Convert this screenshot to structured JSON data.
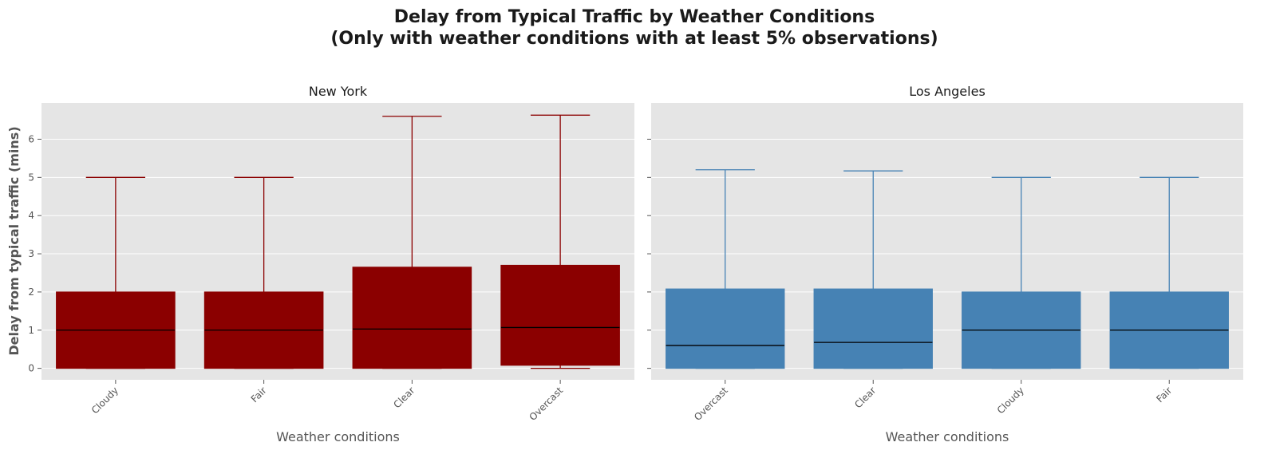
{
  "title_line1": "Delay from Typical Traffic by Weather Conditions",
  "title_line2": "(Only with weather conditions with at least 5% observations)",
  "ylabel": "Delay from typical traffic (mins)",
  "colors": {
    "panel_bg": "#e5e5e5",
    "grid": "#ffffff",
    "median": "#000000"
  },
  "chart_data": [
    {
      "type": "box",
      "title": "New York",
      "xlabel": "Weather conditions",
      "ylabel": "Delay from typical traffic (mins)",
      "color": "#8b0000",
      "ylim": [
        -0.3,
        6.95
      ],
      "yticks": [
        0,
        1,
        2,
        3,
        4,
        5,
        6
      ],
      "categories": [
        "Cloudy",
        "Fair",
        "Clear",
        "Overcast"
      ],
      "boxes": [
        {
          "category": "Cloudy",
          "whisker_low": 0.0,
          "q1": 0.0,
          "median": 1.0,
          "q3": 2.0,
          "whisker_high": 5.0
        },
        {
          "category": "Fair",
          "whisker_low": 0.0,
          "q1": 0.0,
          "median": 1.0,
          "q3": 2.0,
          "whisker_high": 5.0
        },
        {
          "category": "Clear",
          "whisker_low": 0.0,
          "q1": 0.0,
          "median": 1.03,
          "q3": 2.65,
          "whisker_high": 6.6
        },
        {
          "category": "Overcast",
          "whisker_low": 0.0,
          "q1": 0.08,
          "median": 1.07,
          "q3": 2.7,
          "whisker_high": 6.63
        }
      ]
    },
    {
      "type": "box",
      "title": "Los Angeles",
      "xlabel": "Weather conditions",
      "color": "#4682b4",
      "ylim": [
        -0.3,
        6.95
      ],
      "yticks": [
        0,
        1,
        2,
        3,
        4,
        5,
        6
      ],
      "categories": [
        "Overcast",
        "Clear",
        "Cloudy",
        "Fair"
      ],
      "boxes": [
        {
          "category": "Overcast",
          "whisker_low": 0.0,
          "q1": 0.0,
          "median": 0.6,
          "q3": 2.08,
          "whisker_high": 5.2
        },
        {
          "category": "Clear",
          "whisker_low": 0.0,
          "q1": 0.0,
          "median": 0.68,
          "q3": 2.08,
          "whisker_high": 5.17
        },
        {
          "category": "Cloudy",
          "whisker_low": 0.0,
          "q1": 0.0,
          "median": 1.0,
          "q3": 2.0,
          "whisker_high": 5.0
        },
        {
          "category": "Fair",
          "whisker_low": 0.0,
          "q1": 0.0,
          "median": 1.0,
          "q3": 2.0,
          "whisker_high": 5.0
        }
      ]
    }
  ]
}
